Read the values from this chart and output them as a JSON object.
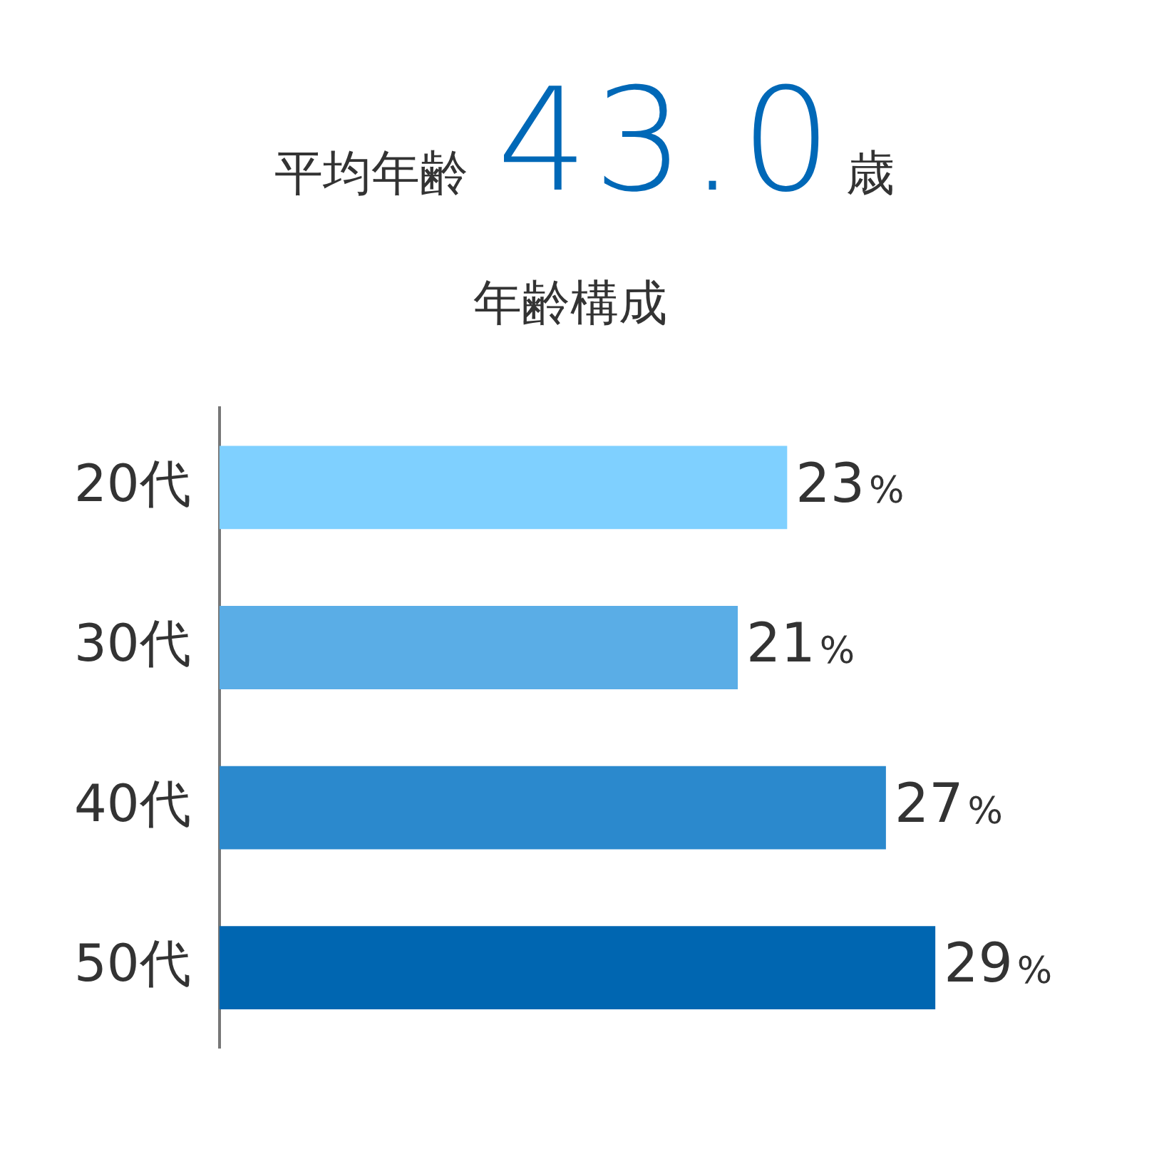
{
  "chart_data": {
    "type": "bar",
    "orientation": "horizontal",
    "title": "年齢構成",
    "annotations": [
      "平均年齢43.0歳"
    ],
    "categories": [
      "20代",
      "30代",
      "40代",
      "50代"
    ],
    "values": [
      23,
      21,
      27,
      29
    ],
    "colors": [
      "#7fd0ff",
      "#5aade6",
      "#2b89cd",
      "#0066b1"
    ],
    "value_labels": [
      "23%",
      "21%",
      "27%",
      "29%"
    ],
    "tick_labels": "y",
    "legend": false
  }
}
